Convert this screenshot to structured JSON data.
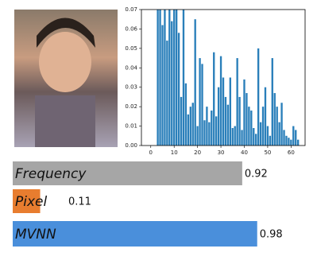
{
  "chart_data": [
    {
      "type": "bar",
      "x": [
        0,
        1,
        2,
        3,
        4,
        5,
        6,
        7,
        8,
        9,
        10,
        11,
        12,
        13,
        14,
        15,
        16,
        17,
        18,
        19,
        20,
        21,
        22,
        23,
        24,
        25,
        26,
        27,
        28,
        29,
        30,
        31,
        32,
        33,
        34,
        35,
        36,
        37,
        38,
        39,
        40,
        41,
        42,
        43,
        44,
        45,
        46,
        47,
        48,
        49,
        50,
        51,
        52,
        53,
        54,
        55,
        56,
        57,
        58,
        59,
        60,
        61,
        62,
        63
      ],
      "values": [
        0,
        0,
        0,
        0.07,
        0.07,
        0.062,
        0.07,
        0.054,
        0.07,
        0.064,
        0.07,
        0.07,
        0.058,
        0.025,
        0.07,
        0.032,
        0.016,
        0.02,
        0.022,
        0.065,
        0.01,
        0.045,
        0.042,
        0.013,
        0.02,
        0.012,
        0.018,
        0.048,
        0.015,
        0.03,
        0.046,
        0.035,
        0.025,
        0.021,
        0.035,
        0.009,
        0.01,
        0.045,
        0.025,
        0.008,
        0.034,
        0.027,
        0.02,
        0.018,
        0.009,
        0.006,
        0.05,
        0.012,
        0.02,
        0.03,
        0.01,
        0.005,
        0.045,
        0.027,
        0.02,
        0.012,
        0.022,
        0.008,
        0.005,
        0.004,
        0.003,
        0.01,
        0.008,
        0.003
      ],
      "color": "#2a7fba",
      "xlim": [
        -4,
        66
      ],
      "xticks": [
        0,
        10,
        20,
        30,
        40,
        50,
        60
      ],
      "ylim": [
        0,
        0.07
      ],
      "yticks": [
        {
          "value": 0,
          "label": "0.00"
        },
        {
          "value": 0.01,
          "label": "0.01"
        },
        {
          "value": 0.02,
          "label": "0.02"
        },
        {
          "value": 0.03,
          "label": "0.03"
        },
        {
          "value": 0.04,
          "label": "0.04"
        },
        {
          "value": 0.05,
          "label": "0.05"
        },
        {
          "value": 0.06,
          "label": "0.06"
        },
        {
          "value": 0.07,
          "label": "0.07"
        }
      ]
    },
    {
      "type": "hbar",
      "categories": [
        "Frequency",
        "Pixel",
        "MVNN"
      ],
      "values": [
        0.92,
        0.11,
        0.98
      ],
      "colors": [
        "#a6a6a6",
        "#e87d2f",
        "#4a8fdb"
      ],
      "xlim": [
        0,
        1
      ]
    }
  ]
}
